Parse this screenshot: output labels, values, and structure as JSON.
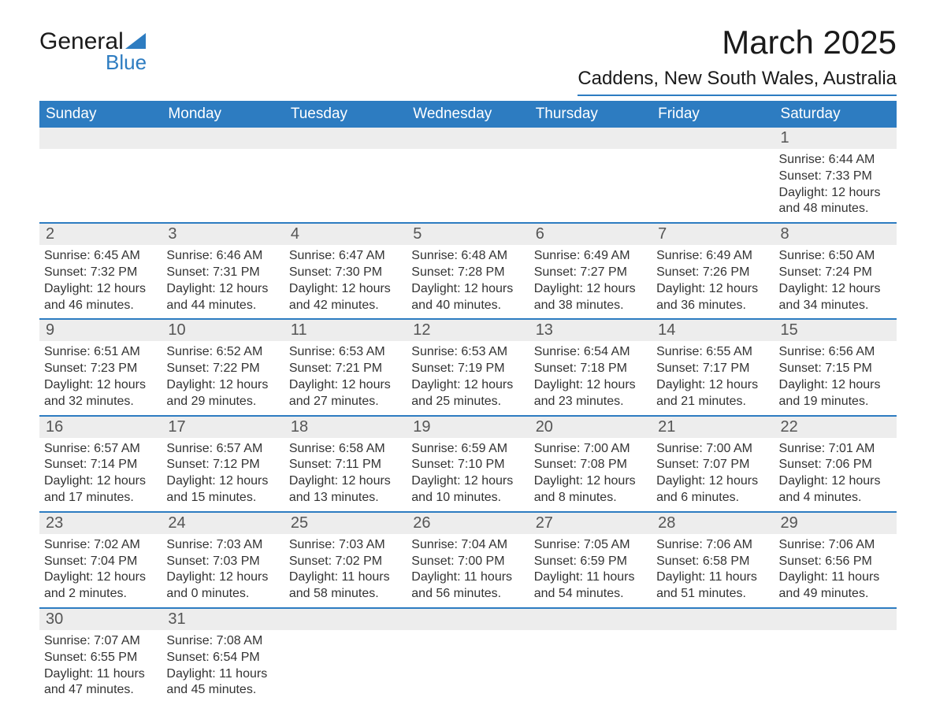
{
  "logo": {
    "text_general": "General",
    "text_blue": "Blue",
    "triangle_color": "#2d7cc1"
  },
  "title": "March 2025",
  "location": "Caddens, New South Wales, Australia",
  "day_names": [
    "Sunday",
    "Monday",
    "Tuesday",
    "Wednesday",
    "Thursday",
    "Friday",
    "Saturday"
  ],
  "colors": {
    "header_bg": "#2d7cc1",
    "header_text": "#ffffff",
    "daynum_bg": "#ededed",
    "border": "#2d7cc1",
    "text": "#333333"
  },
  "weeks": [
    [
      null,
      null,
      null,
      null,
      null,
      null,
      {
        "n": "1",
        "sr": "Sunrise: 6:44 AM",
        "ss": "Sunset: 7:33 PM",
        "dl": "Daylight: 12 hours and 48 minutes."
      }
    ],
    [
      {
        "n": "2",
        "sr": "Sunrise: 6:45 AM",
        "ss": "Sunset: 7:32 PM",
        "dl": "Daylight: 12 hours and 46 minutes."
      },
      {
        "n": "3",
        "sr": "Sunrise: 6:46 AM",
        "ss": "Sunset: 7:31 PM",
        "dl": "Daylight: 12 hours and 44 minutes."
      },
      {
        "n": "4",
        "sr": "Sunrise: 6:47 AM",
        "ss": "Sunset: 7:30 PM",
        "dl": "Daylight: 12 hours and 42 minutes."
      },
      {
        "n": "5",
        "sr": "Sunrise: 6:48 AM",
        "ss": "Sunset: 7:28 PM",
        "dl": "Daylight: 12 hours and 40 minutes."
      },
      {
        "n": "6",
        "sr": "Sunrise: 6:49 AM",
        "ss": "Sunset: 7:27 PM",
        "dl": "Daylight: 12 hours and 38 minutes."
      },
      {
        "n": "7",
        "sr": "Sunrise: 6:49 AM",
        "ss": "Sunset: 7:26 PM",
        "dl": "Daylight: 12 hours and 36 minutes."
      },
      {
        "n": "8",
        "sr": "Sunrise: 6:50 AM",
        "ss": "Sunset: 7:24 PM",
        "dl": "Daylight: 12 hours and 34 minutes."
      }
    ],
    [
      {
        "n": "9",
        "sr": "Sunrise: 6:51 AM",
        "ss": "Sunset: 7:23 PM",
        "dl": "Daylight: 12 hours and 32 minutes."
      },
      {
        "n": "10",
        "sr": "Sunrise: 6:52 AM",
        "ss": "Sunset: 7:22 PM",
        "dl": "Daylight: 12 hours and 29 minutes."
      },
      {
        "n": "11",
        "sr": "Sunrise: 6:53 AM",
        "ss": "Sunset: 7:21 PM",
        "dl": "Daylight: 12 hours and 27 minutes."
      },
      {
        "n": "12",
        "sr": "Sunrise: 6:53 AM",
        "ss": "Sunset: 7:19 PM",
        "dl": "Daylight: 12 hours and 25 minutes."
      },
      {
        "n": "13",
        "sr": "Sunrise: 6:54 AM",
        "ss": "Sunset: 7:18 PM",
        "dl": "Daylight: 12 hours and 23 minutes."
      },
      {
        "n": "14",
        "sr": "Sunrise: 6:55 AM",
        "ss": "Sunset: 7:17 PM",
        "dl": "Daylight: 12 hours and 21 minutes."
      },
      {
        "n": "15",
        "sr": "Sunrise: 6:56 AM",
        "ss": "Sunset: 7:15 PM",
        "dl": "Daylight: 12 hours and 19 minutes."
      }
    ],
    [
      {
        "n": "16",
        "sr": "Sunrise: 6:57 AM",
        "ss": "Sunset: 7:14 PM",
        "dl": "Daylight: 12 hours and 17 minutes."
      },
      {
        "n": "17",
        "sr": "Sunrise: 6:57 AM",
        "ss": "Sunset: 7:12 PM",
        "dl": "Daylight: 12 hours and 15 minutes."
      },
      {
        "n": "18",
        "sr": "Sunrise: 6:58 AM",
        "ss": "Sunset: 7:11 PM",
        "dl": "Daylight: 12 hours and 13 minutes."
      },
      {
        "n": "19",
        "sr": "Sunrise: 6:59 AM",
        "ss": "Sunset: 7:10 PM",
        "dl": "Daylight: 12 hours and 10 minutes."
      },
      {
        "n": "20",
        "sr": "Sunrise: 7:00 AM",
        "ss": "Sunset: 7:08 PM",
        "dl": "Daylight: 12 hours and 8 minutes."
      },
      {
        "n": "21",
        "sr": "Sunrise: 7:00 AM",
        "ss": "Sunset: 7:07 PM",
        "dl": "Daylight: 12 hours and 6 minutes."
      },
      {
        "n": "22",
        "sr": "Sunrise: 7:01 AM",
        "ss": "Sunset: 7:06 PM",
        "dl": "Daylight: 12 hours and 4 minutes."
      }
    ],
    [
      {
        "n": "23",
        "sr": "Sunrise: 7:02 AM",
        "ss": "Sunset: 7:04 PM",
        "dl": "Daylight: 12 hours and 2 minutes."
      },
      {
        "n": "24",
        "sr": "Sunrise: 7:03 AM",
        "ss": "Sunset: 7:03 PM",
        "dl": "Daylight: 12 hours and 0 minutes."
      },
      {
        "n": "25",
        "sr": "Sunrise: 7:03 AM",
        "ss": "Sunset: 7:02 PM",
        "dl": "Daylight: 11 hours and 58 minutes."
      },
      {
        "n": "26",
        "sr": "Sunrise: 7:04 AM",
        "ss": "Sunset: 7:00 PM",
        "dl": "Daylight: 11 hours and 56 minutes."
      },
      {
        "n": "27",
        "sr": "Sunrise: 7:05 AM",
        "ss": "Sunset: 6:59 PM",
        "dl": "Daylight: 11 hours and 54 minutes."
      },
      {
        "n": "28",
        "sr": "Sunrise: 7:06 AM",
        "ss": "Sunset: 6:58 PM",
        "dl": "Daylight: 11 hours and 51 minutes."
      },
      {
        "n": "29",
        "sr": "Sunrise: 7:06 AM",
        "ss": "Sunset: 6:56 PM",
        "dl": "Daylight: 11 hours and 49 minutes."
      }
    ],
    [
      {
        "n": "30",
        "sr": "Sunrise: 7:07 AM",
        "ss": "Sunset: 6:55 PM",
        "dl": "Daylight: 11 hours and 47 minutes."
      },
      {
        "n": "31",
        "sr": "Sunrise: 7:08 AM",
        "ss": "Sunset: 6:54 PM",
        "dl": "Daylight: 11 hours and 45 minutes."
      },
      null,
      null,
      null,
      null,
      null
    ]
  ]
}
